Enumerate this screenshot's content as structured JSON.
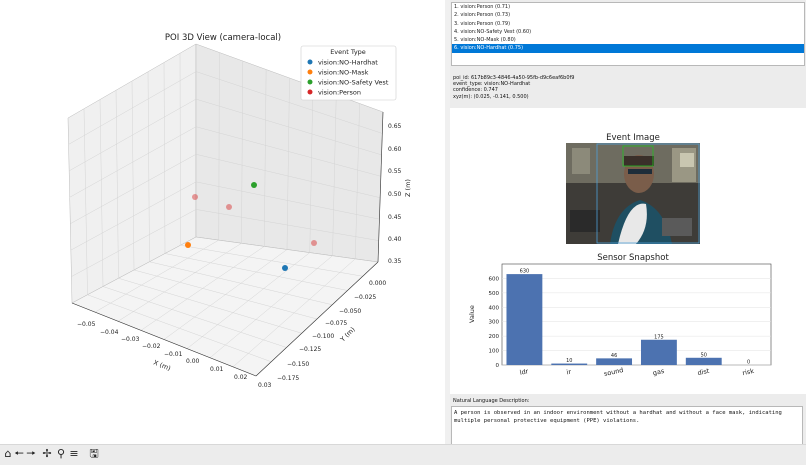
{
  "plot3d": {
    "title": "POI 3D View (camera-local)",
    "xlabel": "X (m)",
    "ylabel": "Y (m)",
    "zlabel": "Z (m)",
    "x_ticks": [
      "−0.05",
      "−0.04",
      "−0.03",
      "−0.02",
      "−0.01",
      "0.00",
      "0.01",
      "0.02",
      "0.03"
    ],
    "y_ticks": [
      "0.000",
      "−0.025",
      "−0.050",
      "−0.075",
      "−0.100",
      "−0.125",
      "−0.150",
      "−0.175"
    ],
    "z_ticks": [
      "0.65",
      "0.60",
      "0.55",
      "0.50",
      "0.45",
      "0.40",
      "0.35"
    ],
    "legend_title": "Event Type",
    "legend": [
      {
        "label": "vision:NO-Hardhat",
        "color": "#1f77b4"
      },
      {
        "label": "vision:NO-Mask",
        "color": "#ff7f0e"
      },
      {
        "label": "vision:NO-Safety Vest",
        "color": "#2ca02c"
      },
      {
        "label": "vision:Person",
        "color": "#d62728"
      }
    ]
  },
  "event_list": [
    "1. vision:Person (0.71)",
    "2. vision:Person (0.73)",
    "3. vision:Person (0.79)",
    "4. vision:NO-Safety Vest (0.60)",
    "5. vision:NO-Mask (0.80)",
    "6. vision:NO-Hardhat (0.75)"
  ],
  "selected_index": 5,
  "details": {
    "poi_id": "poi_id: 617b89c3-4846-4a50-95fb-d9c6eaf6b0f9",
    "event_type": "event_type: vision:NO-Hardhat",
    "confidence": "confidence: 0.747",
    "xyz": "xyz(m): (0.025, -0.141, 0.500)"
  },
  "event_image_title": "Event Image",
  "chart_data": {
    "type": "bar",
    "title": "Sensor Snapshot",
    "xlabel": "",
    "ylabel": "Value",
    "categories": [
      "ldr",
      "ir",
      "sound",
      "gas",
      "dist",
      "risk"
    ],
    "values": [
      630,
      10,
      46,
      175,
      50,
      0
    ],
    "value_labels": [
      "630",
      "10",
      "46",
      "175",
      "50",
      "0"
    ],
    "ylim": [
      0,
      700
    ],
    "yticks": [
      "0",
      "100",
      "200",
      "300",
      "400",
      "500",
      "600"
    ],
    "bar_color": "#4c72b0",
    "grid": true
  },
  "description_label": "Natural Language Description:",
  "description": "A person is observed in an indoor environment without a hardhat and without a face mask, indicating multiple personal protective equipment (PPE) violations.",
  "toolbar_icons": [
    "home-icon",
    "back-arrow-icon",
    "forward-arrow-icon",
    "pan-icon",
    "zoom-icon",
    "configure-icon",
    "save-icon"
  ]
}
